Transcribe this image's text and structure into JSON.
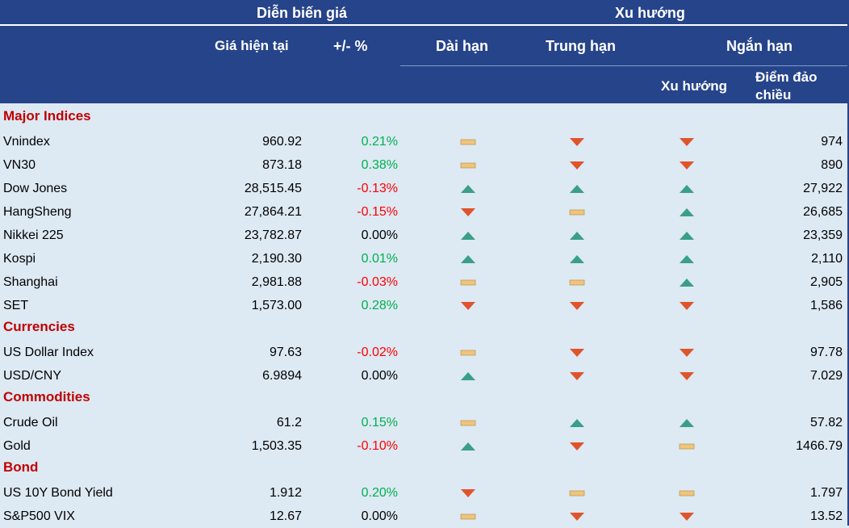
{
  "header": {
    "price_group": "Diễn biến giá",
    "trend_group": "Xu hướng",
    "price_col": "Giá hiện tại",
    "change_col": "+/- %",
    "long_term": "Dài hạn",
    "mid_term": "Trung hạn",
    "short_term": "Ngắn hạn",
    "short_trend": "Xu hướng",
    "reversal_point_l1": "Điểm đảo",
    "reversal_point_l2": "chiều"
  },
  "colors": {
    "header_bg": "#26448a",
    "body_bg": "#dde9f3",
    "section_title": "#c00000",
    "positive": "#00b050",
    "negative": "#ff0000",
    "up_icon": "#3a9f86",
    "down_icon": "#e0542c",
    "flat_icon": "#f0c47a"
  },
  "sections": [
    {
      "title": "Major Indices",
      "rows": [
        {
          "name": "Vnindex",
          "price": "960.92",
          "change": "0.21%",
          "sign": "pos",
          "long": "flat",
          "mid": "down",
          "short": "down",
          "reversal": "974"
        },
        {
          "name": "VN30",
          "price": "873.18",
          "change": "0.38%",
          "sign": "pos",
          "long": "flat",
          "mid": "down",
          "short": "down",
          "reversal": "890"
        },
        {
          "name": "Dow Jones",
          "price": "28,515.45",
          "change": "-0.13%",
          "sign": "neg",
          "long": "up",
          "mid": "up",
          "short": "up",
          "reversal": "27,922"
        },
        {
          "name": "HangSheng",
          "price": "27,864.21",
          "change": "-0.15%",
          "sign": "neg",
          "long": "down",
          "mid": "flat",
          "short": "up",
          "reversal": "26,685"
        },
        {
          "name": "Nikkei 225",
          "price": "23,782.87",
          "change": "0.00%",
          "sign": "zero",
          "long": "up",
          "mid": "up",
          "short": "up",
          "reversal": "23,359"
        },
        {
          "name": "Kospi",
          "price": "2,190.30",
          "change": "0.01%",
          "sign": "pos",
          "long": "up",
          "mid": "up",
          "short": "up",
          "reversal": "2,110"
        },
        {
          "name": "Shanghai",
          "price": "2,981.88",
          "change": "-0.03%",
          "sign": "neg",
          "long": "flat",
          "mid": "flat",
          "short": "up",
          "reversal": "2,905"
        },
        {
          "name": "SET",
          "price": "1,573.00",
          "change": "0.28%",
          "sign": "pos",
          "long": "down",
          "mid": "down",
          "short": "down",
          "reversal": "1,586"
        }
      ]
    },
    {
      "title": "Currencies",
      "rows": [
        {
          "name": "US Dollar Index",
          "price": "97.63",
          "change": "-0.02%",
          "sign": "neg",
          "long": "flat",
          "mid": "down",
          "short": "down",
          "reversal": "97.78"
        },
        {
          "name": "USD/CNY",
          "price": "6.9894",
          "change": "0.00%",
          "sign": "zero",
          "long": "up",
          "mid": "down",
          "short": "down",
          "reversal": "7.029"
        }
      ]
    },
    {
      "title": "Commodities",
      "rows": [
        {
          "name": "Crude Oil",
          "price": "61.2",
          "change": "0.15%",
          "sign": "pos",
          "long": "flat",
          "mid": "up",
          "short": "up",
          "reversal": "57.82"
        },
        {
          "name": "Gold",
          "price": "1,503.35",
          "change": "-0.10%",
          "sign": "neg",
          "long": "up",
          "mid": "down",
          "short": "flat",
          "reversal": "1466.79"
        }
      ]
    },
    {
      "title": "Bond",
      "rows": [
        {
          "name": "US 10Y Bond Yield",
          "price": "1.912",
          "change": "0.20%",
          "sign": "pos",
          "long": "down",
          "mid": "flat",
          "short": "flat",
          "reversal": "1.797"
        },
        {
          "name": "S&P500 VIX",
          "price": "12.67",
          "change": "0.00%",
          "sign": "zero",
          "long": "flat",
          "mid": "down",
          "short": "down",
          "reversal": "13.52"
        }
      ]
    }
  ]
}
